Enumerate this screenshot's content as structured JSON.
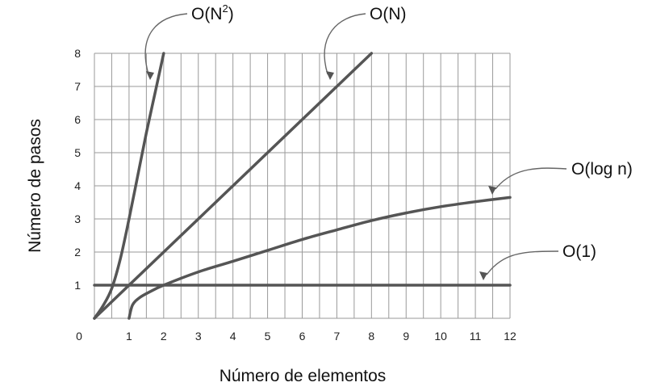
{
  "chart_data": {
    "type": "line",
    "title": "",
    "xlabel": "Número de elementos",
    "ylabel": "Número de pasos",
    "xlim": [
      0,
      12
    ],
    "ylim": [
      0,
      8
    ],
    "origin_label": "0",
    "x_ticks": [
      "1",
      "2",
      "3",
      "4",
      "5",
      "6",
      "7",
      "8",
      "9",
      "10",
      "11",
      "12"
    ],
    "y_ticks": [
      "1",
      "2",
      "3",
      "4",
      "5",
      "6",
      "7",
      "8"
    ],
    "grid": true,
    "series": [
      {
        "name": "O(N²)",
        "label_base": "O(N",
        "label_sup": "2",
        "label_end": ")",
        "x": [
          0,
          0.25,
          0.5,
          0.75,
          1,
          1.25,
          1.5,
          1.75,
          2
        ],
        "y": [
          0,
          0.38,
          0.9,
          1.8,
          3.0,
          4.3,
          5.6,
          6.8,
          8
        ]
      },
      {
        "name": "O(N)",
        "label_base": "O(N)",
        "label_sup": "",
        "label_end": "",
        "x": [
          0,
          8
        ],
        "y": [
          0,
          8
        ]
      },
      {
        "name": "O(log n)",
        "label_base": "O(log n)",
        "label_sup": "",
        "label_end": "",
        "x": [
          1,
          1.1,
          1.3,
          1.6,
          2,
          3,
          4,
          5,
          6,
          7,
          8,
          9,
          10,
          11,
          12
        ],
        "y": [
          0,
          0.4,
          0.62,
          0.8,
          1.0,
          1.4,
          1.72,
          2.05,
          2.38,
          2.67,
          2.95,
          3.18,
          3.37,
          3.52,
          3.65
        ]
      },
      {
        "name": "O(1)",
        "label_base": "O(1)",
        "label_sup": "",
        "label_end": "",
        "x": [
          0,
          12
        ],
        "y": [
          1,
          1
        ]
      }
    ]
  }
}
